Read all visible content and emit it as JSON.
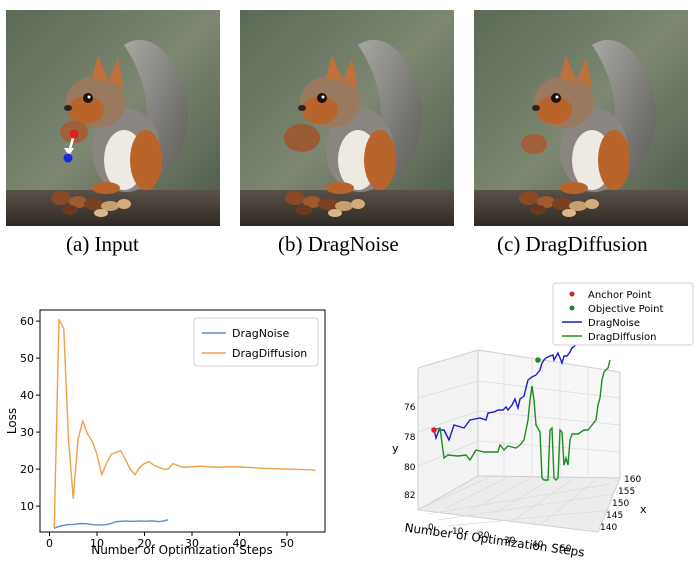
{
  "figure": {
    "panels": [
      {
        "caption": "(a) Input",
        "image": "squirrel-eating-nut-with-drag-arrow"
      },
      {
        "caption": "(b) DragNoise",
        "image": "squirrel-eating-nut"
      },
      {
        "caption": "(c) DragDiffusion",
        "image": "squirrel-eating-nut"
      }
    ]
  },
  "chart_data": [
    {
      "type": "line",
      "title": "",
      "xlabel": "Number of Optimization Steps",
      "ylabel": "Loss",
      "xlim": [
        -2,
        58
      ],
      "ylim": [
        3,
        63
      ],
      "xticks": [
        0,
        10,
        20,
        30,
        40,
        50
      ],
      "yticks": [
        10,
        20,
        30,
        40,
        50,
        60
      ],
      "legend": "top-right",
      "series": [
        {
          "name": "DragNoise",
          "color": "#5b8ec4",
          "x": [
            1,
            2,
            3,
            4,
            5,
            6,
            7,
            8,
            9,
            10,
            11,
            12,
            13,
            14,
            15,
            16,
            17,
            18,
            19,
            20,
            21,
            22,
            23,
            24,
            25
          ],
          "y": [
            4,
            4.5,
            4.8,
            5,
            5,
            5.2,
            5.3,
            5.2,
            5,
            4.9,
            4.9,
            5,
            5.3,
            5.8,
            5.9,
            6,
            5.9,
            5.9,
            6,
            5.9,
            6,
            6,
            5.8,
            6,
            6.3
          ]
        },
        {
          "name": "DragDiffusion",
          "color": "#f0a04b",
          "x": [
            1,
            2,
            3,
            4,
            5,
            6,
            7,
            8,
            9,
            10,
            11,
            12,
            13,
            14,
            15,
            16,
            17,
            18,
            19,
            20,
            21,
            22,
            23,
            24,
            25,
            26,
            27,
            28,
            30,
            32,
            35,
            38,
            40,
            45,
            50,
            55,
            56
          ],
          "y": [
            4,
            60.5,
            58,
            28,
            12,
            28,
            33,
            29.5,
            27.5,
            24,
            18.5,
            21.5,
            24,
            24.5,
            25,
            22.5,
            20,
            18.5,
            20.5,
            21.5,
            22,
            21,
            20.5,
            20,
            20,
            21.5,
            21,
            20.5,
            20.6,
            20.8,
            20.5,
            20.6,
            20.6,
            20.2,
            20,
            19.8,
            19.6
          ]
        }
      ]
    },
    {
      "type": "line",
      "title": "",
      "xlabel": "Number of Optimization Steps",
      "ylabel": "y",
      "zlabel": "x",
      "xticks": [
        0,
        10,
        20,
        30,
        40,
        50
      ],
      "yticks": [
        76,
        78,
        80,
        82
      ],
      "zticks": [
        140,
        145,
        150,
        155,
        160
      ],
      "legend": "top-right",
      "legend_entries": [
        {
          "label": "Anchor Point",
          "marker": "dot",
          "color": "#e02020"
        },
        {
          "label": "Objective Point",
          "marker": "dot",
          "color": "#1e8c1e"
        },
        {
          "label": "DragNoise",
          "marker": "line",
          "color": "#1a1acc"
        },
        {
          "label": "DragDiffusion",
          "marker": "line",
          "color": "#1e8c1e"
        }
      ]
    }
  ]
}
